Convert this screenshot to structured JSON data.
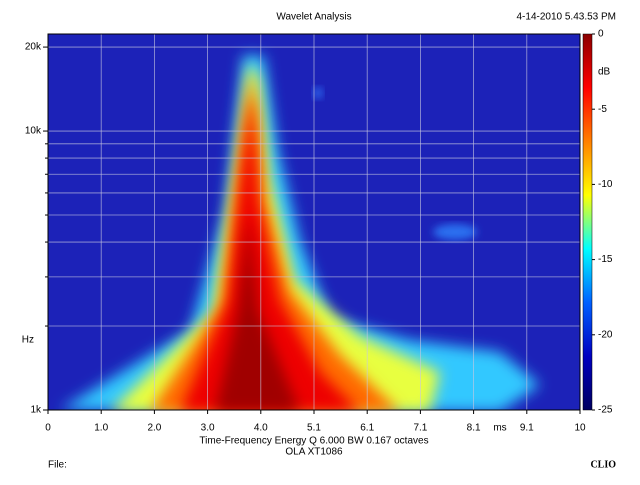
{
  "chart_data": {
    "type": "heatmap",
    "title": "Wavelet Analysis",
    "timestamp": "4-14-2010 5.43.53 PM",
    "x_label": "Time-Frequency Energy  Q 6.000 BW 0.167 octaves",
    "x_unit": "ms",
    "y_label": "Hz",
    "subtitle": "OLA XT1086",
    "file_label": "File:",
    "brand": "CLIO",
    "xlim": [
      0,
      10.1
    ],
    "xticks": [
      0,
      {
        "value": 1.01,
        "label": "1.0"
      },
      {
        "value": 2.02,
        "label": "2.0"
      },
      {
        "value": 3.03,
        "label": "3.0"
      },
      {
        "value": 4.04,
        "label": "4.0"
      },
      {
        "value": 5.05,
        "label": "5.1"
      },
      {
        "value": 6.06,
        "label": "6.1"
      },
      {
        "value": 7.07,
        "label": "7.1"
      },
      {
        "value": 8.08,
        "label": "8.1"
      },
      {
        "value": 9.09,
        "label": "9.1"
      },
      {
        "value": 10.1,
        "label": "10"
      }
    ],
    "ylim": [
      1000,
      22280
    ],
    "log_y": true,
    "yticks": [
      {
        "value": 1000,
        "label": "1k"
      },
      {
        "value": 10000,
        "label": "10k"
      },
      {
        "value": 20000,
        "label": "20k"
      }
    ],
    "y_minor_ticks": [
      2000,
      3000,
      4000,
      5000,
      6000,
      7000,
      8000,
      9000
    ],
    "grid": true,
    "colorbar": {
      "label": "dB",
      "lim": [
        -25,
        0
      ],
      "ticks": [
        0,
        -5,
        -10,
        -15,
        -20,
        -25
      ],
      "colors": [
        "#8b0000",
        "#ff0000",
        "#ff8000",
        "#ffff00",
        "#00ffff",
        "#0060ff",
        "#0000c0",
        "#000060"
      ]
    }
  }
}
